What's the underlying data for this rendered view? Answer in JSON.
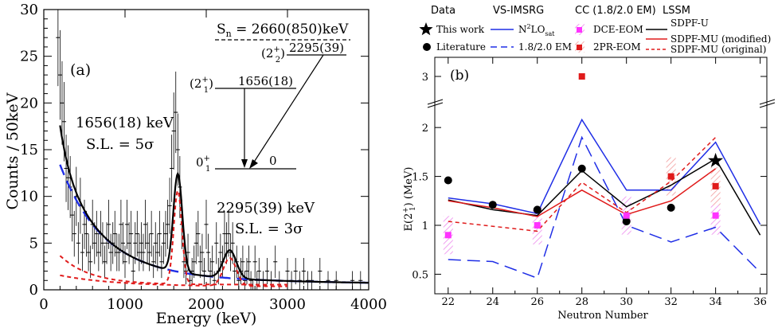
{
  "panel_a": {
    "tag": "(a)",
    "sn_label": "S",
    "sn_sub": "n",
    "sn_value": " = 2660(850)keV",
    "peak1_label": "1656(18) keV",
    "peak1_sl": "S.L. = 5σ",
    "peak2_label": "2295(39) keV",
    "peak2_sl": "S.L. = 3σ",
    "levels": [
      {
        "spin": "(2",
        "sup": "+",
        "sub": "2",
        "close": ")",
        "energy": "2295(39)"
      },
      {
        "spin": "(2",
        "sup": "+",
        "sub": "1",
        "close": ")",
        "energy": "1656(18)"
      },
      {
        "spin": "0",
        "sup": "+",
        "sub": "1",
        "close": "",
        "energy": "0"
      }
    ]
  },
  "panel_b": {
    "tag": "(b)",
    "legend": {
      "data_title": "Data",
      "this_work": "This work",
      "literature": "Literature",
      "vs_title": "VS-IMSRG",
      "n2lo_main": "N",
      "n2lo_sup": "2",
      "n2lo_mid": "LO",
      "n2lo_sub": "sat",
      "em_label": "1.8/2.0 EM",
      "cc_title": "CC (1.8/2.0 EM)",
      "dce": "DCE-EOM",
      "pr": "2PR-EOM",
      "lssm_title": "LSSM",
      "sdpfu": "SDPF-U",
      "sdpfmu_mod": "SDPF-MU (modified)",
      "sdpfmu_orig": "SDPF-MU (original)"
    },
    "colors": {
      "blue": "#1f2ee6",
      "red": "#e01b1b",
      "magenta": "#ff33ff",
      "black": "#000000"
    }
  },
  "chart_data": [
    {
      "type": "histogram",
      "title": "",
      "xlabel": "Energy (keV)",
      "ylabel": "Counts / 50keV",
      "xlim": [
        0,
        4000
      ],
      "ylim": [
        0,
        30
      ],
      "xticks": [
        0,
        1000,
        2000,
        3000,
        4000
      ],
      "yticks": [
        0,
        5,
        10,
        15,
        20,
        25,
        30
      ],
      "bin_width": 50,
      "counts": [
        [
          175,
          27
        ],
        [
          200,
          23
        ],
        [
          225,
          20
        ],
        [
          250,
          18
        ],
        [
          275,
          13
        ],
        [
          300,
          12
        ],
        [
          325,
          11
        ],
        [
          350,
          8
        ],
        [
          375,
          6
        ],
        [
          400,
          10
        ],
        [
          425,
          5
        ],
        [
          450,
          9
        ],
        [
          475,
          4
        ],
        [
          500,
          7
        ],
        [
          525,
          6
        ],
        [
          550,
          4
        ],
        [
          575,
          3
        ],
        [
          600,
          7
        ],
        [
          625,
          5
        ],
        [
          650,
          6
        ],
        [
          675,
          4
        ],
        [
          700,
          6
        ],
        [
          725,
          5
        ],
        [
          750,
          3
        ],
        [
          775,
          5
        ],
        [
          800,
          7
        ],
        [
          825,
          4
        ],
        [
          850,
          5
        ],
        [
          875,
          6
        ],
        [
          900,
          4
        ],
        [
          925,
          4
        ],
        [
          950,
          7
        ],
        [
          975,
          5
        ],
        [
          1000,
          3
        ],
        [
          1025,
          7
        ],
        [
          1050,
          5
        ],
        [
          1075,
          6
        ],
        [
          1100,
          2
        ],
        [
          1125,
          5
        ],
        [
          1150,
          6
        ],
        [
          1175,
          4
        ],
        [
          1200,
          5
        ],
        [
          1225,
          4
        ],
        [
          1250,
          7
        ],
        [
          1275,
          5
        ],
        [
          1300,
          4
        ],
        [
          1325,
          6
        ],
        [
          1350,
          3
        ],
        [
          1375,
          5
        ],
        [
          1400,
          4
        ],
        [
          1425,
          6
        ],
        [
          1450,
          3
        ],
        [
          1475,
          5
        ],
        [
          1500,
          6
        ],
        [
          1525,
          7
        ],
        [
          1550,
          9
        ],
        [
          1575,
          13
        ],
        [
          1600,
          17
        ],
        [
          1625,
          19
        ],
        [
          1650,
          15
        ],
        [
          1675,
          11
        ],
        [
          1700,
          7
        ],
        [
          1725,
          3
        ],
        [
          1750,
          2
        ],
        [
          1775,
          4
        ],
        [
          1800,
          1
        ],
        [
          1825,
          2
        ],
        [
          1850,
          3
        ],
        [
          1875,
          5
        ],
        [
          1900,
          6
        ],
        [
          1925,
          3
        ],
        [
          1950,
          4
        ],
        [
          1975,
          2
        ],
        [
          2000,
          7
        ],
        [
          2025,
          4
        ],
        [
          2050,
          2
        ],
        [
          2075,
          3
        ],
        [
          2100,
          1
        ],
        [
          2125,
          5
        ],
        [
          2150,
          2
        ],
        [
          2175,
          4
        ],
        [
          2200,
          3
        ],
        [
          2225,
          6
        ],
        [
          2250,
          5
        ],
        [
          2275,
          6
        ],
        [
          2300,
          4
        ],
        [
          2325,
          5
        ],
        [
          2350,
          2
        ],
        [
          2375,
          3
        ],
        [
          2400,
          1
        ],
        [
          2425,
          2
        ],
        [
          2450,
          3
        ],
        [
          2475,
          1
        ],
        [
          2500,
          2
        ],
        [
          2525,
          3
        ],
        [
          2550,
          1
        ],
        [
          2575,
          0
        ],
        [
          2600,
          3
        ],
        [
          2625,
          1
        ],
        [
          2650,
          2
        ],
        [
          2700,
          1
        ],
        [
          2750,
          2
        ],
        [
          2800,
          1
        ],
        [
          2850,
          3
        ],
        [
          2900,
          1
        ],
        [
          3000,
          2
        ],
        [
          3050,
          1
        ],
        [
          3100,
          2
        ],
        [
          3150,
          1
        ],
        [
          3200,
          2
        ],
        [
          3250,
          1
        ],
        [
          3300,
          1
        ],
        [
          3400,
          2
        ],
        [
          3500,
          1
        ],
        [
          3600,
          1
        ],
        [
          3800,
          1
        ],
        [
          3900,
          1
        ]
      ],
      "fits": [
        {
          "name": "total fit",
          "style": "black solid"
        },
        {
          "name": "background",
          "style": "blue dashed"
        },
        {
          "name": "peak 1656 keV",
          "style": "red dashed"
        },
        {
          "name": "peak 2295 keV",
          "style": "red dashed"
        }
      ]
    },
    {
      "type": "line",
      "title": "",
      "xlabel": "Neutron Number",
      "ylabel": "E(2+1) (MeV)",
      "x": [
        22,
        24,
        26,
        28,
        30,
        32,
        34,
        36
      ],
      "xlim": [
        21.4,
        36.3
      ],
      "xticks": [
        22,
        24,
        26,
        28,
        30,
        32,
        34,
        36
      ],
      "yticks": [
        0.5,
        1,
        1.5,
        2,
        3
      ],
      "ylim_lower": [
        0.3,
        2.27
      ],
      "ylim_upper": [
        2.85,
        3.2
      ],
      "series": [
        {
          "name": "This work",
          "style": "black star",
          "points": [
            [
              34,
              1.66
            ]
          ]
        },
        {
          "name": "Literature",
          "style": "black dot",
          "points": [
            [
              22,
              1.46
            ],
            [
              24,
              1.21
            ],
            [
              26,
              1.16
            ],
            [
              28,
              1.58
            ],
            [
              30,
              1.04
            ],
            [
              32,
              1.18
            ]
          ]
        },
        {
          "name": "N2LOsat",
          "style": "blue solid",
          "points": [
            [
              22,
              1.28
            ],
            [
              24,
              1.22
            ],
            [
              26,
              1.12
            ],
            [
              28,
              2.08
            ],
            [
              30,
              1.36
            ],
            [
              32,
              1.36
            ],
            [
              34,
              1.85
            ],
            [
              36,
              1.01
            ]
          ]
        },
        {
          "name": "1.8/2.0 EM (VS-IMSRG)",
          "style": "blue dashed",
          "points": [
            [
              22,
              0.65
            ],
            [
              24,
              0.63
            ],
            [
              26,
              0.46
            ],
            [
              28,
              1.9
            ],
            [
              30,
              1.0
            ],
            [
              32,
              0.83
            ],
            [
              34,
              0.98
            ],
            [
              36,
              0.52
            ]
          ]
        },
        {
          "name": "DCE-EOM",
          "style": "magenta square",
          "points": [
            [
              22,
              0.9
            ],
            [
              26,
              1.0
            ],
            [
              30,
              1.1
            ],
            [
              34,
              1.1
            ]
          ]
        },
        {
          "name": "2PR-EOM",
          "style": "red square",
          "points": [
            [
              28,
              3.0
            ],
            [
              32,
              1.5
            ],
            [
              34,
              1.4
            ]
          ]
        },
        {
          "name": "SDPF-U",
          "style": "black solid",
          "points": [
            [
              22,
              1.26
            ],
            [
              24,
              1.16
            ],
            [
              26,
              1.1
            ],
            [
              28,
              1.56
            ],
            [
              30,
              1.19
            ],
            [
              32,
              1.41
            ],
            [
              34,
              1.68
            ],
            [
              36,
              0.9
            ]
          ]
        },
        {
          "name": "SDPF-MU (modified)",
          "style": "red solid",
          "points": [
            [
              22,
              1.25
            ],
            [
              24,
              1.18
            ],
            [
              26,
              1.09
            ],
            [
              28,
              1.36
            ],
            [
              30,
              1.11
            ],
            [
              32,
              1.25
            ],
            [
              34,
              1.58
            ]
          ]
        },
        {
          "name": "SDPF-MU (original)",
          "style": "red dashed",
          "points": [
            [
              22,
              1.04
            ],
            [
              24,
              0.99
            ],
            [
              26,
              0.94
            ],
            [
              28,
              1.44
            ],
            [
              30,
              1.13
            ],
            [
              32,
              1.45
            ],
            [
              34,
              1.9
            ]
          ]
        }
      ]
    }
  ]
}
